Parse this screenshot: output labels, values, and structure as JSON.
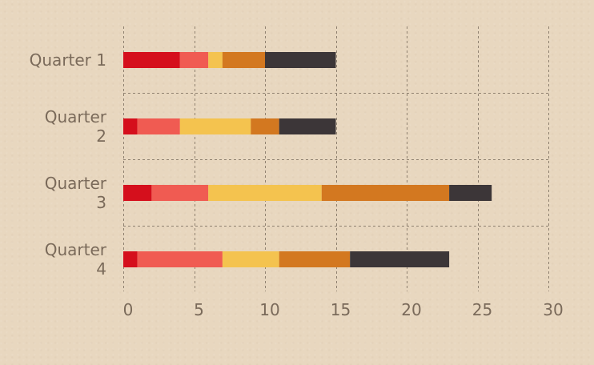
{
  "chart_data": {
    "type": "bar",
    "orientation": "horizontal",
    "stacked": true,
    "categories": [
      [
        "Quarter 1"
      ],
      [
        "Quarter",
        "2"
      ],
      [
        "Quarter",
        "3"
      ],
      [
        "Quarter",
        "4"
      ]
    ],
    "series": [
      {
        "color": "#d50f1c",
        "values": [
          4,
          1,
          2,
          1
        ]
      },
      {
        "color": "#f05b52",
        "values": [
          2,
          3,
          4,
          6
        ]
      },
      {
        "color": "#f4c34f",
        "values": [
          1,
          5,
          8,
          4
        ]
      },
      {
        "color": "#d37820",
        "values": [
          3,
          2,
          9,
          5
        ]
      },
      {
        "color": "#3c3638",
        "values": [
          5,
          4,
          3,
          7
        ]
      }
    ],
    "x_ticks": [
      "0",
      "5",
      "10",
      "15",
      "20",
      "25",
      "30"
    ],
    "xlim": [
      0,
      30
    ],
    "grid": true,
    "legend": "none"
  }
}
